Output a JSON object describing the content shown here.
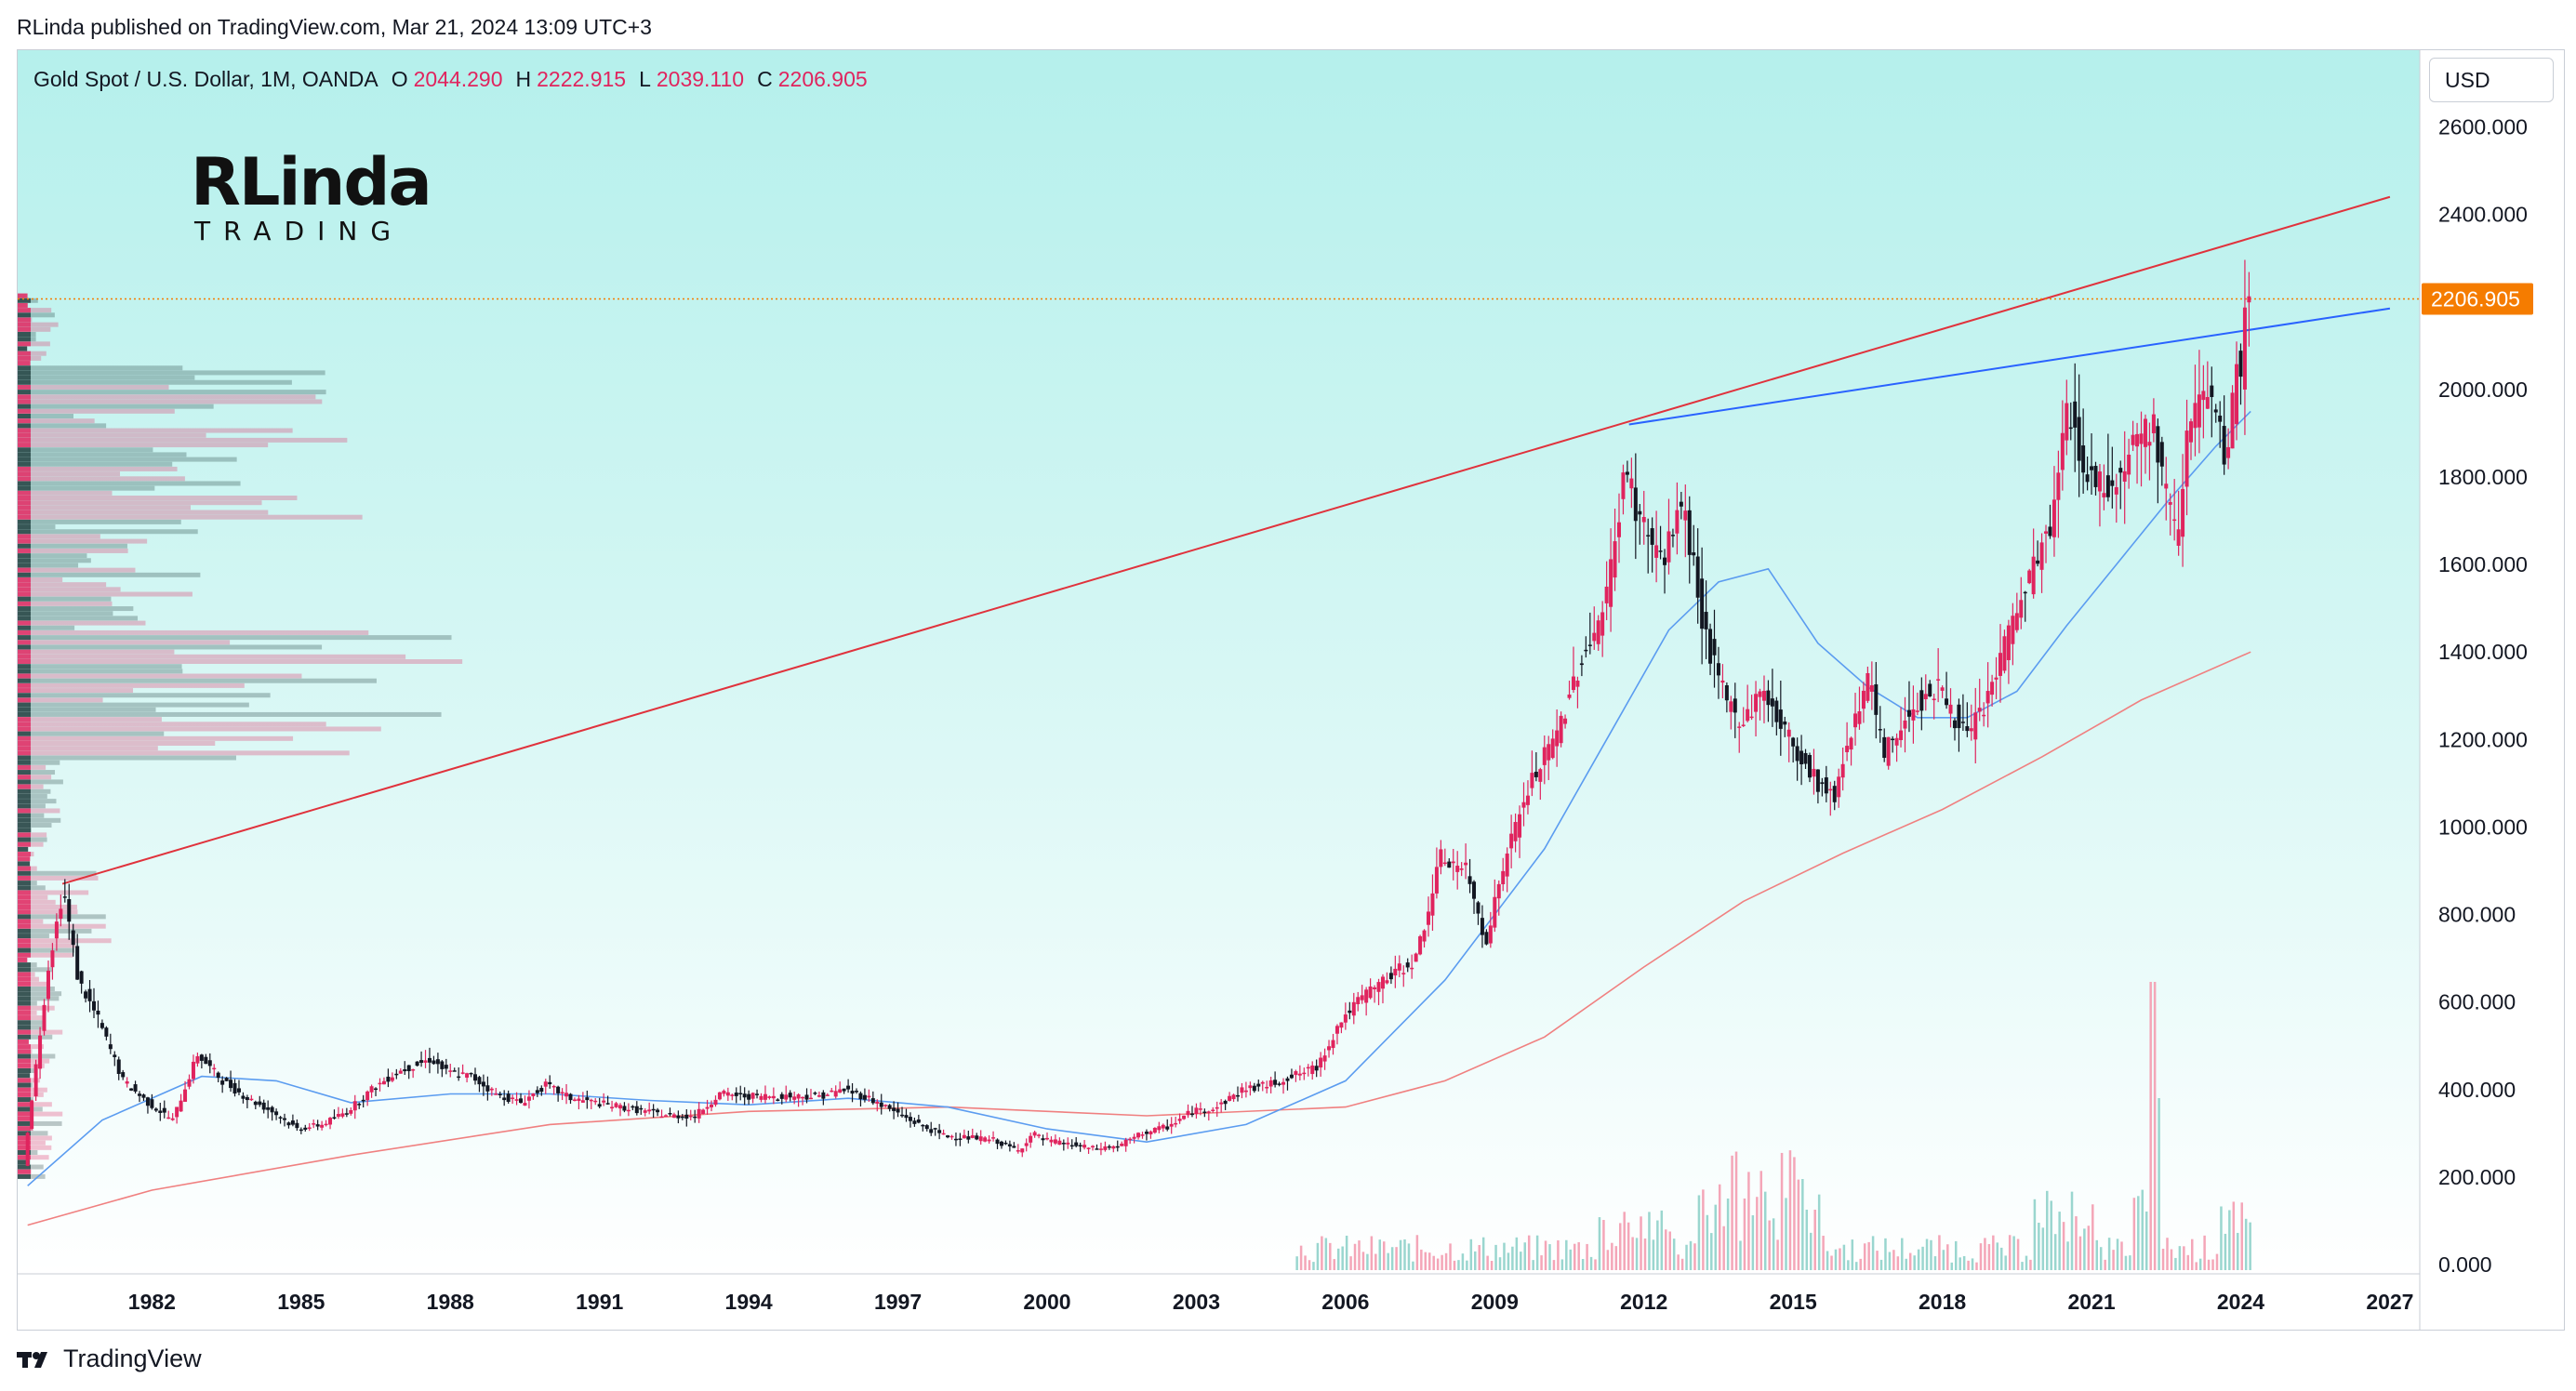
{
  "header": {
    "published": "RLinda published on TradingView.com, Mar 21, 2024 13:09 UTC+3"
  },
  "legend": {
    "symbol": "Gold Spot / U.S. Dollar, 1M, OANDA",
    "o_label": "O",
    "o": "2044.290",
    "h_label": "H",
    "h": "2222.915",
    "l_label": "L",
    "l": "2039.110",
    "c_label": "C",
    "c": "2206.905"
  },
  "currency_button": "USD",
  "logo": {
    "line1": "RLinda",
    "line2": "TRADING"
  },
  "footer": {
    "brand": "TradingView"
  },
  "colors": {
    "background_top": "#b5f0ec",
    "background_bottom": "#ffffff",
    "up": "#e0245e",
    "down": "#131722",
    "ma_fast": "#5b9cf0",
    "ma_slow": "#f08080",
    "resistance": "#e0323c",
    "trendline": "#2962ff",
    "last_price": "#f57c00"
  },
  "chart_data": {
    "type": "candlestick",
    "x_ticks": [
      "1982",
      "1985",
      "1988",
      "1991",
      "1994",
      "1997",
      "2000",
      "2003",
      "2006",
      "2009",
      "2012",
      "2015",
      "2018",
      "2021",
      "2024",
      "2027"
    ],
    "y_ticks": [
      "2600.000",
      "2400.000",
      "2200.000",
      "2000.000",
      "1800.000",
      "1600.000",
      "1400.000",
      "1200.000",
      "1000.000",
      "800.000",
      "600.000",
      "400.000",
      "200.000",
      "0.000"
    ],
    "ylim": [
      0,
      2600
    ],
    "last_price_label": "2206.905",
    "price_path": [
      [
        1979.5,
        230
      ],
      [
        1980.0,
        680
      ],
      [
        1980.3,
        860
      ],
      [
        1980.6,
        650
      ],
      [
        1981.0,
        560
      ],
      [
        1981.5,
        420
      ],
      [
        1982.0,
        370
      ],
      [
        1982.5,
        330
      ],
      [
        1983.0,
        480
      ],
      [
        1983.5,
        420
      ],
      [
        1984.0,
        380
      ],
      [
        1984.5,
        350
      ],
      [
        1985.0,
        310
      ],
      [
        1985.5,
        320
      ],
      [
        1986.0,
        350
      ],
      [
        1986.5,
        400
      ],
      [
        1987.0,
        440
      ],
      [
        1987.7,
        470
      ],
      [
        1988.0,
        440
      ],
      [
        1988.5,
        430
      ],
      [
        1989.0,
        390
      ],
      [
        1989.5,
        370
      ],
      [
        1990.0,
        410
      ],
      [
        1990.5,
        380
      ],
      [
        1991.0,
        370
      ],
      [
        1991.5,
        360
      ],
      [
        1992.0,
        350
      ],
      [
        1992.5,
        340
      ],
      [
        1993.0,
        340
      ],
      [
        1993.5,
        390
      ],
      [
        1994.0,
        385
      ],
      [
        1994.5,
        385
      ],
      [
        1995.0,
        385
      ],
      [
        1995.5,
        385
      ],
      [
        1996.0,
        400
      ],
      [
        1996.5,
        380
      ],
      [
        1997.0,
        350
      ],
      [
        1997.5,
        320
      ],
      [
        1998.0,
        295
      ],
      [
        1998.5,
        290
      ],
      [
        1999.0,
        285
      ],
      [
        1999.5,
        260
      ],
      [
        1999.8,
        300
      ],
      [
        2000.0,
        285
      ],
      [
        2000.5,
        275
      ],
      [
        2001.0,
        265
      ],
      [
        2001.5,
        270
      ],
      [
        2002.0,
        300
      ],
      [
        2002.5,
        315
      ],
      [
        2003.0,
        350
      ],
      [
        2003.5,
        360
      ],
      [
        2004.0,
        400
      ],
      [
        2004.5,
        410
      ],
      [
        2005.0,
        430
      ],
      [
        2005.5,
        450
      ],
      [
        2006.0,
        560
      ],
      [
        2006.5,
        620
      ],
      [
        2007.0,
        660
      ],
      [
        2007.5,
        700
      ],
      [
        2008.0,
        930
      ],
      [
        2008.5,
        900
      ],
      [
        2008.9,
        740
      ],
      [
        2009.3,
        930
      ],
      [
        2009.8,
        1100
      ],
      [
        2010.3,
        1200
      ],
      [
        2010.8,
        1380
      ],
      [
        2011.3,
        1500
      ],
      [
        2011.7,
        1820
      ],
      [
        2012.0,
        1700
      ],
      [
        2012.5,
        1600
      ],
      [
        2012.8,
        1750
      ],
      [
        2013.0,
        1650
      ],
      [
        2013.3,
        1450
      ],
      [
        2013.6,
        1320
      ],
      [
        2014.0,
        1240
      ],
      [
        2014.5,
        1310
      ],
      [
        2015.0,
        1200
      ],
      [
        2015.6,
        1100
      ],
      [
        2015.9,
        1065
      ],
      [
        2016.3,
        1250
      ],
      [
        2016.6,
        1340
      ],
      [
        2016.9,
        1160
      ],
      [
        2017.5,
        1280
      ],
      [
        2018.0,
        1320
      ],
      [
        2018.6,
        1200
      ],
      [
        2019.0,
        1300
      ],
      [
        2019.6,
        1500
      ],
      [
        2020.3,
        1700
      ],
      [
        2020.6,
        1970
      ],
      [
        2021.0,
        1800
      ],
      [
        2021.5,
        1780
      ],
      [
        2022.0,
        1900
      ],
      [
        2022.3,
        1920
      ],
      [
        2022.8,
        1650
      ],
      [
        2023.0,
        1920
      ],
      [
        2023.4,
        1990
      ],
      [
        2023.8,
        1830
      ],
      [
        2024.0,
        2050
      ],
      [
        2024.1,
        2040
      ],
      [
        2024.2,
        2206.905
      ]
    ],
    "ma_fast": [
      [
        1979.5,
        180
      ],
      [
        1981.0,
        330
      ],
      [
        1983.0,
        430
      ],
      [
        1984.5,
        420
      ],
      [
        1986.0,
        370
      ],
      [
        1988.0,
        390
      ],
      [
        1990.0,
        390
      ],
      [
        1992.0,
        375
      ],
      [
        1994.0,
        365
      ],
      [
        1996.0,
        380
      ],
      [
        1998.0,
        360
      ],
      [
        2000.0,
        310
      ],
      [
        2002.0,
        280
      ],
      [
        2004.0,
        320
      ],
      [
        2006.0,
        420
      ],
      [
        2008.0,
        650
      ],
      [
        2010.0,
        950
      ],
      [
        2011.5,
        1250
      ],
      [
        2012.5,
        1450
      ],
      [
        2013.5,
        1560
      ],
      [
        2014.5,
        1590
      ],
      [
        2015.5,
        1420
      ],
      [
        2016.5,
        1320
      ],
      [
        2017.5,
        1250
      ],
      [
        2018.5,
        1250
      ],
      [
        2019.5,
        1310
      ],
      [
        2020.5,
        1460
      ],
      [
        2021.5,
        1600
      ],
      [
        2022.5,
        1740
      ],
      [
        2023.5,
        1870
      ],
      [
        2024.2,
        1950
      ]
    ],
    "ma_slow": [
      [
        1979.5,
        90
      ],
      [
        1982.0,
        170
      ],
      [
        1986.0,
        250
      ],
      [
        1990.0,
        320
      ],
      [
        1994.0,
        350
      ],
      [
        1998.0,
        360
      ],
      [
        2002.0,
        340
      ],
      [
        2006.0,
        360
      ],
      [
        2008.0,
        420
      ],
      [
        2010.0,
        520
      ],
      [
        2012.0,
        680
      ],
      [
        2014.0,
        830
      ],
      [
        2016.0,
        940
      ],
      [
        2018.0,
        1040
      ],
      [
        2020.0,
        1160
      ],
      [
        2022.0,
        1290
      ],
      [
        2024.2,
        1400
      ]
    ],
    "resistance_line": {
      "from": [
        1980.2,
        870
      ],
      "to": [
        2027.0,
        2440
      ]
    },
    "trend_line": {
      "from": [
        2011.7,
        1920
      ],
      "to": [
        2027.0,
        2185
      ]
    }
  }
}
